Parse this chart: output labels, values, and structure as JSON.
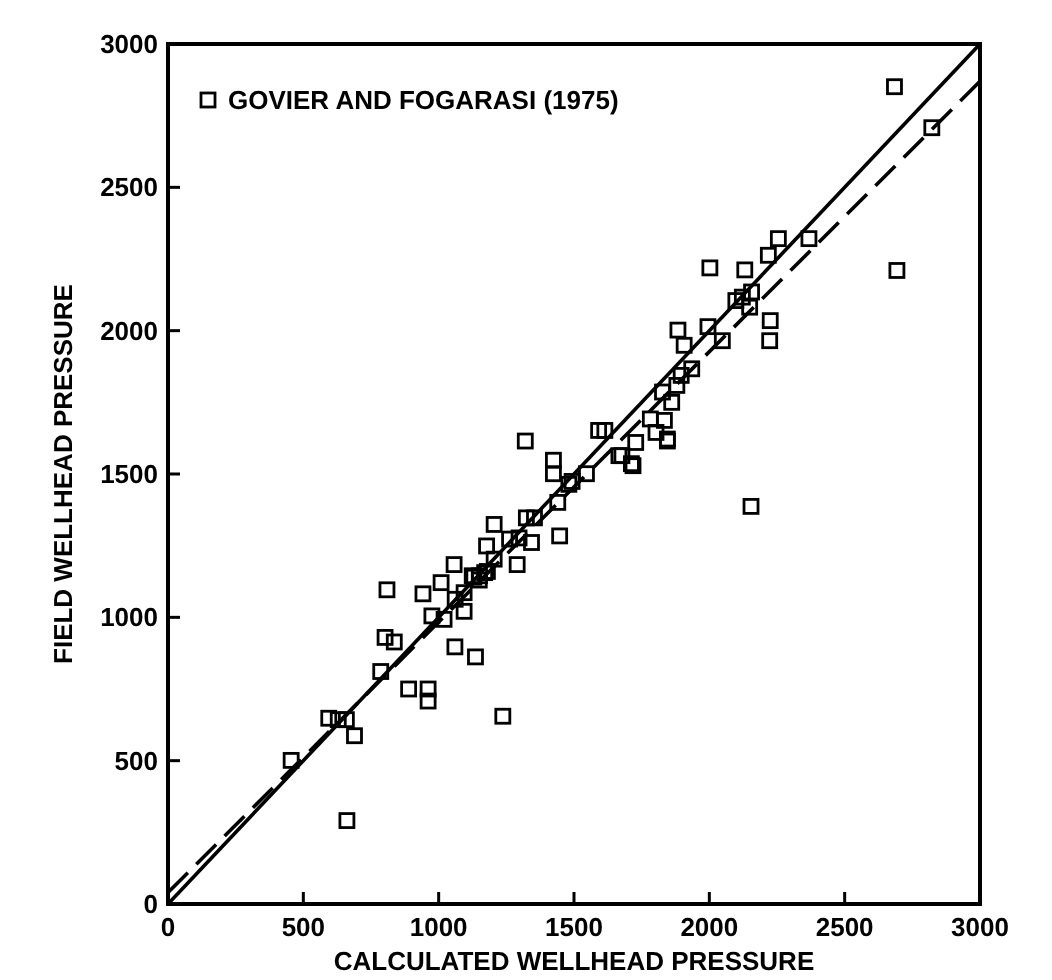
{
  "chart_data": {
    "type": "scatter",
    "xlabel": "CALCULATED WELLHEAD PRESSURE",
    "ylabel": "FIELD WELLHEAD PRESSURE",
    "xlim": [
      0,
      3000
    ],
    "ylim": [
      0,
      3000
    ],
    "xticks": [
      0,
      500,
      1000,
      1500,
      2000,
      2500,
      3000
    ],
    "yticks": [
      0,
      500,
      1000,
      1500,
      2000,
      2500,
      3000
    ],
    "grid": false,
    "legend": "top left",
    "marker": "square",
    "series": [
      {
        "name": "GOVIER AND FOGARASI (1975)",
        "color": "#000000",
        "x": [
          455,
          594,
          629,
          659,
          689,
          661,
          786,
          802,
          836,
          809,
          889,
          961,
          961,
          942,
          975,
          1020,
          1009,
          1057,
          1060,
          1061,
          1094,
          1094,
          1136,
          1124,
          1151,
          1170,
          1177,
          1205,
          1205,
          1237,
          1262,
          1290,
          1297,
          1324,
          1343,
          1354,
          1424,
          1424,
          1447,
          1440,
          1481,
          1320,
          1493,
          1546,
          1666,
          1718,
          1845,
          2154,
          2684,
          2822,
          2693,
          2368,
          2255,
          2218,
          2002,
          2131,
          2098,
          2122,
          2156,
          2149,
          2225,
          2223,
          1995,
          2048,
          1884,
          1907,
          1935,
          1896,
          1880,
          1827,
          1861,
          1782,
          1834,
          1803,
          1845,
          1591,
          1614,
          1728,
          1677,
          1712,
          1150,
          1130,
          1180
        ],
        "values": [
          501,
          648,
          643,
          643,
          587,
          291,
          811,
          930,
          914,
          1096,
          750,
          750,
          708,
          1082,
          1005,
          993,
          1121,
          1184,
          897,
          1063,
          1086,
          1021,
          862,
          1145,
          1145,
          1156,
          1249,
          1324,
          1203,
          655,
          1273,
          1184,
          1277,
          1347,
          1261,
          1347,
          1548,
          1501,
          1284,
          1401,
          1464,
          1615,
          1474,
          1501,
          1564,
          1529,
          1615,
          1387,
          2851,
          2708,
          2210,
          2321,
          2321,
          2263,
          2219,
          2212,
          2105,
          2117,
          2135,
          2082,
          2035,
          1965,
          2014,
          1965,
          2002,
          1949,
          1867,
          1844,
          1809,
          1786,
          1750,
          1692,
          1687,
          1645,
          1622,
          1652,
          1652,
          1610,
          1564,
          1536,
          1130,
          1140,
          1160
        ]
      },
      {
        "color": "#000000",
        "type": "line",
        "marker": "none",
        "line_style": "solid",
        "x": [
          0,
          3000
        ],
        "values": [
          0,
          3000
        ]
      },
      {
        "color": "#000000",
        "type": "line",
        "marker": "none",
        "line_style": "dashed",
        "x": [
          0,
          3000
        ],
        "values": [
          40,
          2870
        ]
      }
    ]
  }
}
